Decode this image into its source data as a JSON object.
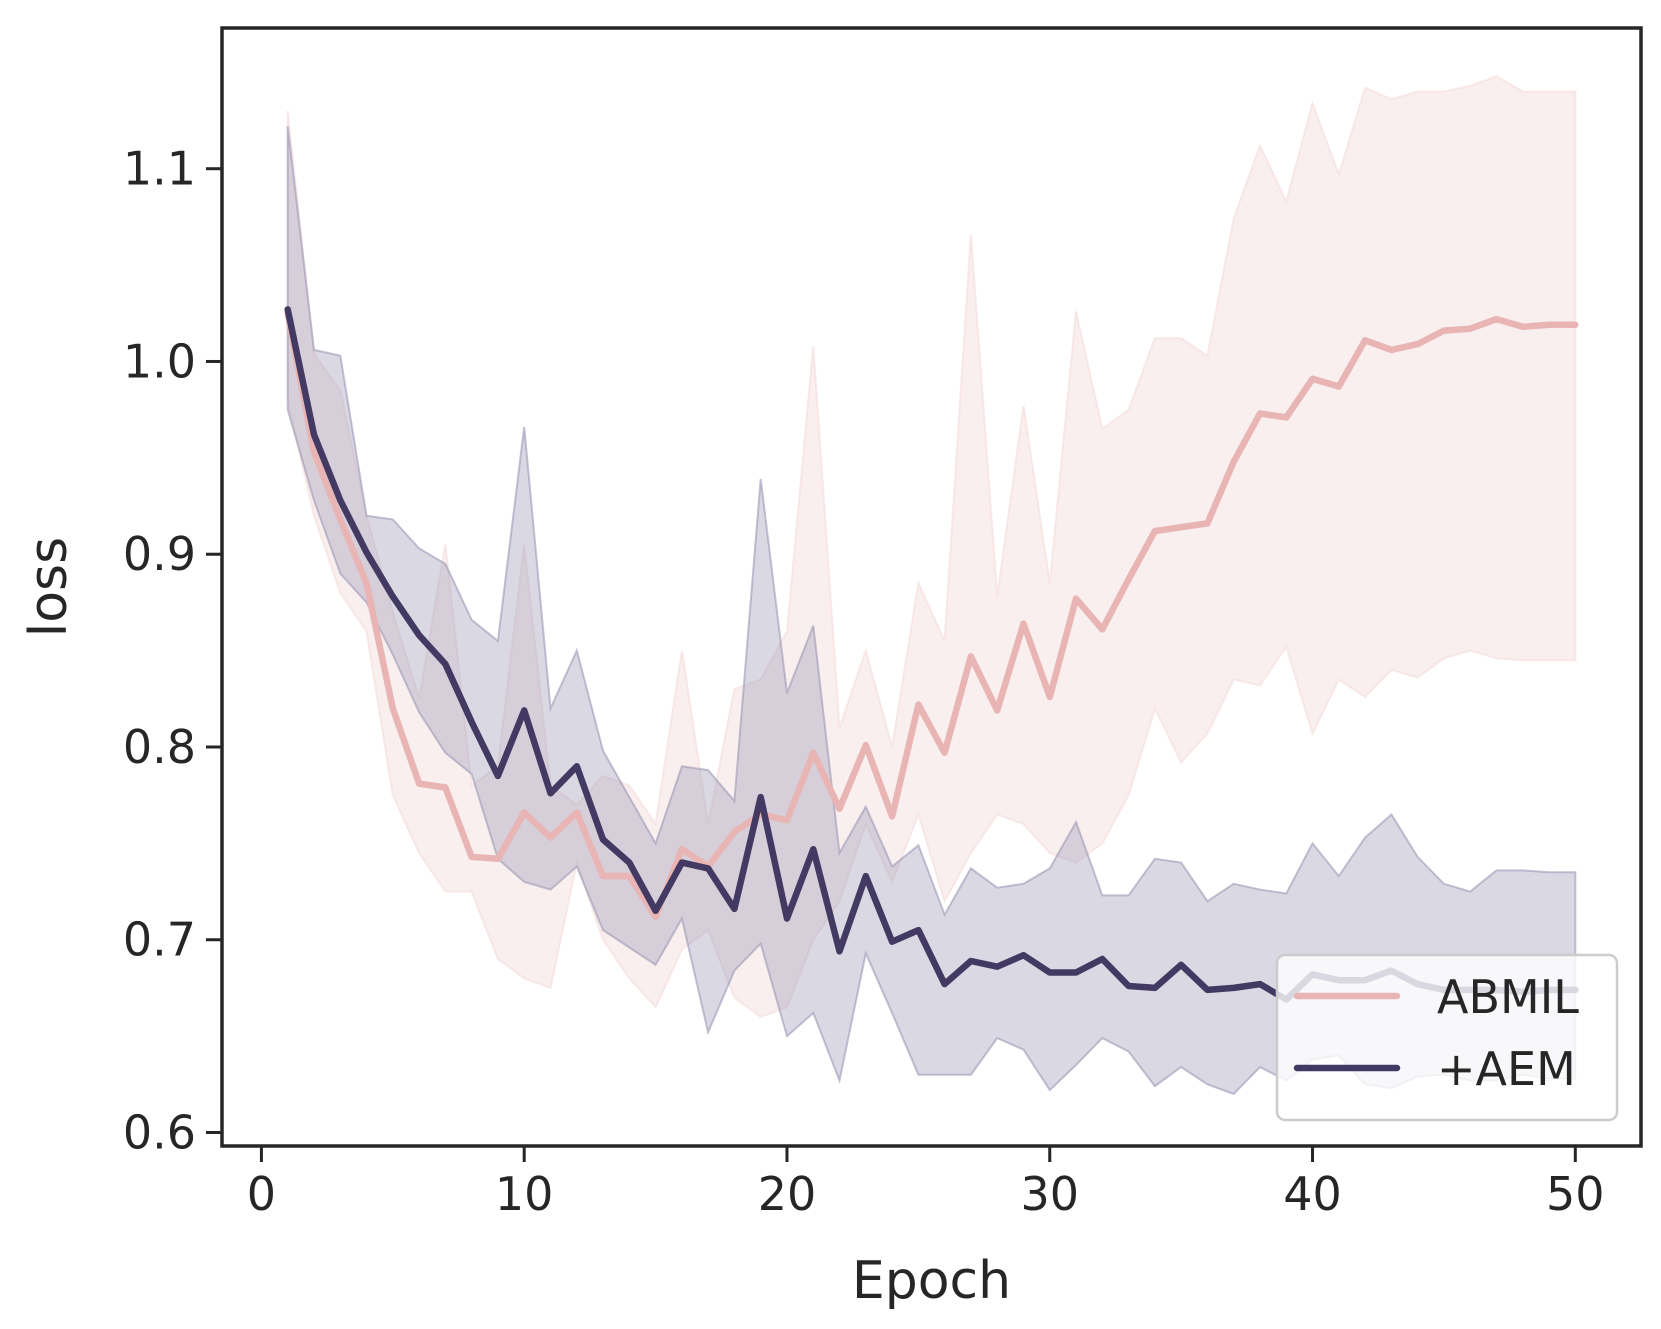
{
  "chart_data": {
    "type": "line",
    "title": "",
    "xlabel": "Epoch",
    "ylabel": "loss",
    "xlim": [
      -1.5,
      52.5
    ],
    "ylim": [
      0.593,
      1.173
    ],
    "xticks": [
      0,
      10,
      20,
      30,
      40,
      50
    ],
    "yticks": [
      0.6,
      0.7,
      0.8,
      0.9,
      1.0,
      1.1
    ],
    "xtick_labels": [
      "0",
      "10",
      "20",
      "30",
      "40",
      "50"
    ],
    "ytick_labels": [
      "0.6",
      "0.7",
      "0.8",
      "0.9",
      "1.0",
      "1.1"
    ],
    "grid": false,
    "legend_position": "lower-right",
    "x": [
      1,
      2,
      3,
      4,
      5,
      6,
      7,
      8,
      9,
      10,
      11,
      12,
      13,
      14,
      15,
      16,
      17,
      18,
      19,
      20,
      21,
      22,
      23,
      24,
      25,
      26,
      27,
      28,
      29,
      30,
      31,
      32,
      33,
      34,
      35,
      36,
      37,
      38,
      39,
      40,
      41,
      42,
      43,
      44,
      45,
      46,
      47,
      48,
      49,
      50
    ],
    "series": [
      {
        "name": "ABMIL",
        "color": "#e8b4b4",
        "band_color": "#f5dcdc",
        "values": [
          1.025,
          0.953,
          0.918,
          0.885,
          0.82,
          0.781,
          0.779,
          0.743,
          0.742,
          0.766,
          0.753,
          0.766,
          0.733,
          0.733,
          0.712,
          0.747,
          0.738,
          0.756,
          0.765,
          0.762,
          0.797,
          0.768,
          0.801,
          0.764,
          0.822,
          0.797,
          0.847,
          0.819,
          0.864,
          0.826,
          0.877,
          0.861,
          0.887,
          0.912,
          0.914,
          0.916,
          0.948,
          0.973,
          0.971,
          0.991,
          0.987,
          1.011,
          1.006,
          1.009,
          1.016,
          1.017,
          1.022,
          1.018,
          1.019,
          1.019
        ],
        "upper": [
          1.13,
          1.004,
          0.985,
          0.92,
          0.87,
          0.825,
          0.905,
          0.78,
          0.79,
          0.905,
          0.78,
          0.77,
          0.785,
          0.78,
          0.76,
          0.85,
          0.76,
          0.83,
          0.835,
          0.86,
          1.008,
          0.81,
          0.85,
          0.8,
          0.885,
          0.855,
          1.066,
          0.878,
          0.977,
          0.885,
          1.026,
          0.965,
          0.975,
          1.012,
          1.012,
          1.003,
          1.074,
          1.112,
          1.083,
          1.134,
          1.097,
          1.142,
          1.136,
          1.14,
          1.14,
          1.143,
          1.148,
          1.14,
          1.14,
          1.14
        ],
        "lower": [
          0.98,
          0.92,
          0.88,
          0.86,
          0.775,
          0.745,
          0.725,
          0.725,
          0.69,
          0.68,
          0.675,
          0.74,
          0.7,
          0.68,
          0.665,
          0.695,
          0.705,
          0.67,
          0.66,
          0.665,
          0.7,
          0.72,
          0.76,
          0.73,
          0.765,
          0.72,
          0.745,
          0.765,
          0.76,
          0.745,
          0.74,
          0.75,
          0.775,
          0.82,
          0.792,
          0.807,
          0.835,
          0.832,
          0.852,
          0.807,
          0.835,
          0.826,
          0.84,
          0.836,
          0.846,
          0.85,
          0.846,
          0.845,
          0.845,
          0.845
        ]
      },
      {
        "name": "+AEM",
        "color": "#433a63",
        "band_color": "#9c99b5",
        "values": [
          1.027,
          0.962,
          0.928,
          0.901,
          0.878,
          0.858,
          0.843,
          0.813,
          0.785,
          0.819,
          0.776,
          0.79,
          0.752,
          0.74,
          0.715,
          0.74,
          0.737,
          0.716,
          0.774,
          0.711,
          0.747,
          0.694,
          0.733,
          0.699,
          0.705,
          0.677,
          0.689,
          0.686,
          0.692,
          0.683,
          0.683,
          0.69,
          0.676,
          0.675,
          0.687,
          0.674,
          0.675,
          0.677,
          0.669,
          0.682,
          0.679,
          0.679,
          0.684,
          0.677,
          0.674,
          0.674,
          0.674,
          0.673,
          0.674,
          0.674
        ],
        "upper": [
          1.122,
          1.006,
          1.003,
          0.92,
          0.918,
          0.903,
          0.895,
          0.866,
          0.855,
          0.966,
          0.82,
          0.85,
          0.798,
          0.774,
          0.75,
          0.79,
          0.788,
          0.772,
          0.939,
          0.828,
          0.863,
          0.745,
          0.769,
          0.738,
          0.749,
          0.713,
          0.737,
          0.727,
          0.729,
          0.737,
          0.761,
          0.723,
          0.723,
          0.742,
          0.74,
          0.72,
          0.729,
          0.726,
          0.724,
          0.75,
          0.733,
          0.753,
          0.765,
          0.743,
          0.729,
          0.725,
          0.736,
          0.736,
          0.735,
          0.735
        ],
        "lower": [
          0.975,
          0.928,
          0.89,
          0.875,
          0.848,
          0.818,
          0.797,
          0.786,
          0.742,
          0.73,
          0.726,
          0.738,
          0.705,
          0.696,
          0.687,
          0.711,
          0.652,
          0.684,
          0.698,
          0.65,
          0.662,
          0.627,
          0.693,
          0.662,
          0.63,
          0.63,
          0.63,
          0.649,
          0.643,
          0.622,
          0.635,
          0.649,
          0.642,
          0.624,
          0.634,
          0.625,
          0.62,
          0.634,
          0.627,
          0.638,
          0.64,
          0.625,
          0.623,
          0.629,
          0.63,
          0.627,
          0.627,
          0.63,
          0.628,
          0.628
        ]
      }
    ]
  }
}
